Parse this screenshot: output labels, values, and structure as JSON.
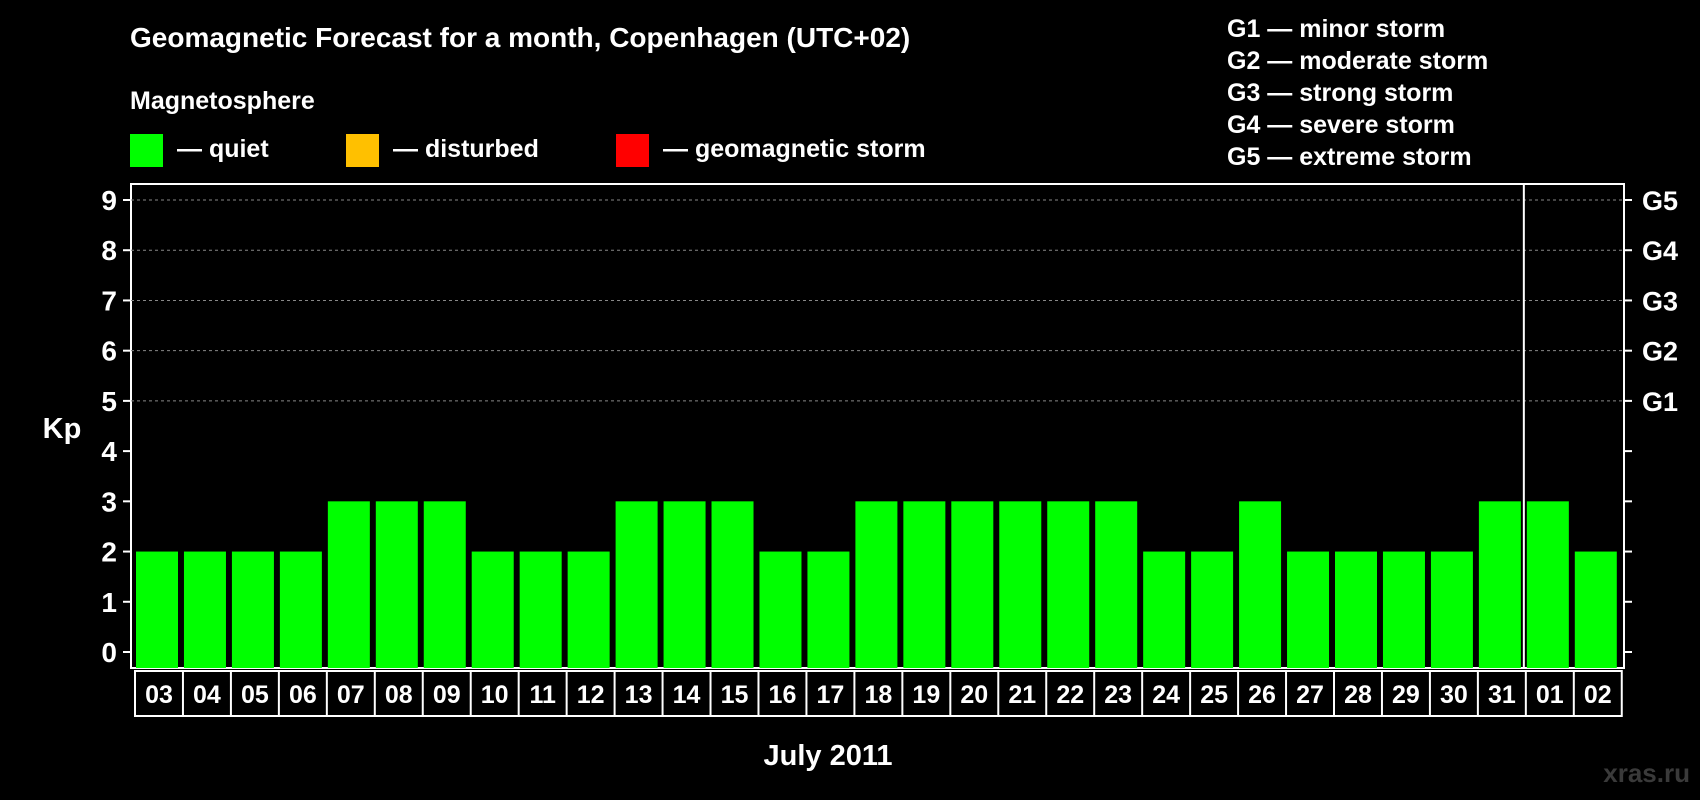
{
  "page": {
    "title": "Geomagnetic Forecast for a month, Copenhagen (UTC+02)",
    "subtitle": "Magnetosphere",
    "watermark": "xras.ru"
  },
  "legend": [
    {
      "label": "— quiet",
      "color": "#00ff00"
    },
    {
      "label": "— disturbed",
      "color": "#ffc000"
    },
    {
      "label": "— geomagnetic storm",
      "color": "#ff0000"
    }
  ],
  "storm_scale": [
    "G1 — minor storm",
    "G2 — moderate storm",
    "G3 — strong storm",
    "G4 — severe storm",
    "G5 — extreme storm"
  ],
  "chart_data": {
    "type": "bar",
    "title": "Geomagnetic Forecast for a month, Copenhagen (UTC+02)",
    "xlabel": "July 2011",
    "ylabel": "Kp",
    "ylim": [
      0,
      9
    ],
    "yticks": [
      0,
      1,
      2,
      3,
      4,
      5,
      6,
      7,
      8,
      9
    ],
    "right_ticks": [
      {
        "value": 5,
        "label": "G1"
      },
      {
        "value": 6,
        "label": "G2"
      },
      {
        "value": 7,
        "label": "G3"
      },
      {
        "value": 8,
        "label": "G4"
      },
      {
        "value": 9,
        "label": "G5"
      }
    ],
    "grid": "dashed at Kp 5-9",
    "month_separator_after": "31",
    "categories": [
      "03",
      "04",
      "05",
      "06",
      "07",
      "08",
      "09",
      "10",
      "11",
      "12",
      "13",
      "14",
      "15",
      "16",
      "17",
      "18",
      "19",
      "20",
      "21",
      "22",
      "23",
      "24",
      "25",
      "26",
      "27",
      "28",
      "29",
      "30",
      "31",
      "01",
      "02"
    ],
    "values": [
      2,
      2,
      2,
      2,
      3,
      3,
      3,
      2,
      2,
      2,
      3,
      3,
      3,
      2,
      2,
      3,
      3,
      3,
      3,
      3,
      3,
      2,
      2,
      3,
      2,
      2,
      2,
      2,
      3,
      3,
      2
    ],
    "bar_color": "#00ff00"
  }
}
